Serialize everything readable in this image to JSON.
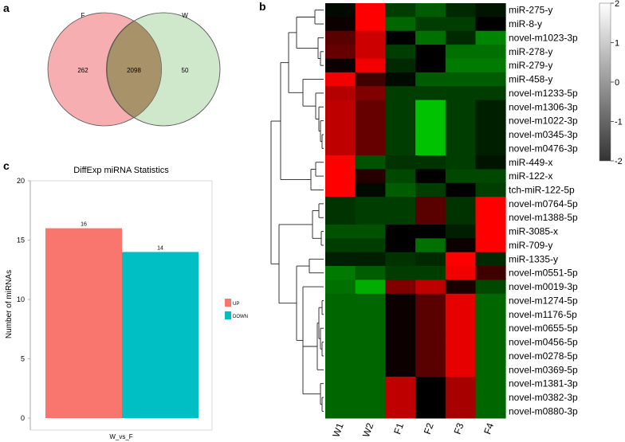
{
  "panels": {
    "a": "a",
    "b": "b",
    "c": "c"
  },
  "chart_data": [
    {
      "type": "venn",
      "panel": "a",
      "sets": [
        {
          "label": "F",
          "only": "262",
          "color": "#f6aeb0"
        },
        {
          "label": "W",
          "only": "50",
          "color": "#a9d7a1"
        }
      ],
      "intersection": "2098",
      "intersection_color": "#a8926a"
    },
    {
      "type": "heatmap",
      "panel": "b",
      "columns": [
        "W1",
        "W2",
        "F1",
        "F2",
        "F3",
        "F4"
      ],
      "rows": [
        "miR-275-y",
        "miR-8-y",
        "novel-m1023-3p",
        "miR-278-y",
        "miR-279-y",
        "miR-458-y",
        "novel-m1233-5p",
        "novel-m1306-3p",
        "novel-m1022-3p",
        "novel-m0345-3p",
        "novel-m0476-3p",
        "miR-449-x",
        "miR-122-x",
        "tch-miR-122-5p",
        "novel-m0764-5p",
        "novel-m1388-5p",
        "miR-3085-x",
        "miR-709-y",
        "miR-1335-y",
        "novel-m0551-5p",
        "novel-m0019-3p",
        "novel-m1274-5p",
        "novel-m1176-5p",
        "novel-m0655-5p",
        "novel-m0456-5p",
        "novel-m0278-5p",
        "novel-m0369-5p",
        "novel-m1381-3p",
        "novel-m0382-3p",
        "novel-m0880-3p"
      ],
      "values": [
        [
          -0.1,
          2.0,
          -0.6,
          -0.9,
          -0.4,
          -0.2
        ],
        [
          0.1,
          2.0,
          -1.0,
          -0.6,
          -0.6,
          0.0
        ],
        [
          0.7,
          1.6,
          0.0,
          -1.1,
          -0.4,
          -1.3
        ],
        [
          0.8,
          1.6,
          -0.6,
          0.0,
          -1.1,
          -1.1
        ],
        [
          0.1,
          1.9,
          -0.4,
          0.0,
          -1.2,
          -1.2
        ],
        [
          1.9,
          0.5,
          -0.1,
          -0.9,
          -0.9,
          -0.9
        ],
        [
          1.4,
          1.0,
          -0.6,
          -0.6,
          -0.6,
          -0.6
        ],
        [
          1.5,
          0.8,
          -0.6,
          -1.9,
          -0.6,
          -0.3
        ],
        [
          1.5,
          0.8,
          -0.6,
          -1.9,
          -0.6,
          -0.3
        ],
        [
          1.5,
          0.8,
          -0.6,
          -1.9,
          -0.6,
          -0.3
        ],
        [
          1.5,
          0.8,
          -0.6,
          -1.9,
          -0.6,
          -0.3
        ],
        [
          2.0,
          -0.8,
          -0.5,
          -0.5,
          -0.6,
          -0.2
        ],
        [
          2.0,
          0.3,
          -0.7,
          0.0,
          -0.7,
          -0.7
        ],
        [
          2.0,
          -0.1,
          -0.9,
          -0.6,
          0.0,
          -0.6
        ],
        [
          -0.5,
          -0.6,
          -0.6,
          0.7,
          -0.5,
          2.0
        ],
        [
          -0.5,
          -0.6,
          -0.6,
          0.7,
          -0.5,
          2.0
        ],
        [
          -0.8,
          -0.8,
          0.0,
          0.0,
          -0.3,
          2.0
        ],
        [
          -0.6,
          -0.6,
          0.0,
          -1.1,
          0.1,
          2.0
        ],
        [
          -0.3,
          -0.3,
          -0.5,
          -0.4,
          2.0,
          -0.4
        ],
        [
          -1.2,
          -0.9,
          -0.6,
          -0.6,
          1.9,
          0.5
        ],
        [
          -1.1,
          -1.7,
          1.0,
          1.5,
          0.2,
          -0.7
        ],
        [
          -1.0,
          -1.0,
          0.1,
          0.7,
          1.8,
          -1.0
        ],
        [
          -1.0,
          -1.0,
          0.1,
          0.7,
          1.8,
          -1.0
        ],
        [
          -1.0,
          -1.0,
          0.1,
          0.7,
          1.8,
          -1.0
        ],
        [
          -1.0,
          -1.0,
          0.1,
          0.7,
          1.8,
          -1.0
        ],
        [
          -1.0,
          -1.0,
          0.1,
          0.7,
          1.8,
          -1.0
        ],
        [
          -1.0,
          -1.0,
          0.1,
          0.7,
          1.8,
          -1.0
        ],
        [
          -1.0,
          -1.0,
          1.5,
          0.0,
          1.3,
          -1.0
        ],
        [
          -1.0,
          -1.0,
          1.5,
          0.0,
          1.3,
          -1.0
        ],
        [
          -1.0,
          -1.0,
          1.5,
          0.0,
          1.3,
          -1.0
        ]
      ],
      "color_scale": {
        "min": -2,
        "max": 2,
        "ticks": [
          "2",
          "1",
          "0",
          "-1",
          "-2"
        ],
        "low_color": "#00cc00",
        "mid_color": "#000000",
        "high_color": "#ff0000"
      }
    },
    {
      "type": "bar",
      "panel": "c",
      "title": "DiffExp miRNA Statistics",
      "categories": [
        "W_vs_F"
      ],
      "series": [
        {
          "name": "UP",
          "values": [
            16
          ],
          "color": "#f8766d"
        },
        {
          "name": "DOWN",
          "values": [
            14
          ],
          "color": "#00bfc4"
        }
      ],
      "data_labels": [
        "16",
        "14"
      ],
      "xlabel": "",
      "ylabel": "Number of miRNAs",
      "ylim": [
        0,
        20
      ],
      "yticks": [
        "0",
        "5",
        "10",
        "15",
        "20"
      ]
    }
  ]
}
